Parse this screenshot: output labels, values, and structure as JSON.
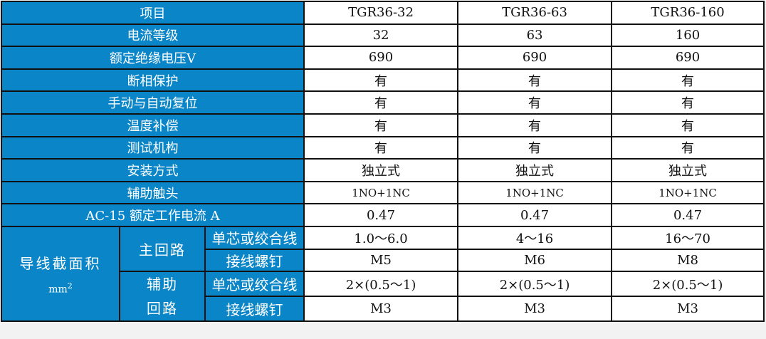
{
  "colors": {
    "header_bg": "#0a85c8",
    "header_text": "#ffffff",
    "border": "#111111"
  },
  "header": {
    "label": "项目",
    "models": [
      "TGR36-32",
      "TGR36-63",
      "TGR36-160"
    ]
  },
  "rows": [
    {
      "label": "电流等级",
      "values": [
        "32",
        "63",
        "160"
      ]
    },
    {
      "label": "额定绝缘电压V",
      "values": [
        "690",
        "690",
        "690"
      ]
    },
    {
      "label": "断相保护",
      "values": [
        "有",
        "有",
        "有"
      ]
    },
    {
      "label": "手动与自动复位",
      "values": [
        "有",
        "有",
        "有"
      ]
    },
    {
      "label": "温度补偿",
      "values": [
        "有",
        "有",
        "有"
      ]
    },
    {
      "label": "测试机构",
      "values": [
        "有",
        "有",
        "有"
      ]
    },
    {
      "label": "安装方式",
      "values": [
        "独立式",
        "独立式",
        "独立式"
      ]
    },
    {
      "label": "辅助触头",
      "values": [
        "1NO+1NC",
        "1NO+1NC",
        "1NO+1NC"
      ]
    },
    {
      "label": "AC-15 额定工作电流 A",
      "values": [
        "0.47",
        "0.47",
        "0.47"
      ]
    }
  ],
  "wire": {
    "label": "导线截面积",
    "unit": "mm",
    "unit_sup": "2",
    "main": {
      "label": "主回路",
      "rows": [
        {
          "label": "单芯或绞合线",
          "values": [
            "1.0～6.0",
            "4～16",
            "16～70"
          ]
        },
        {
          "label": "接线螺钉",
          "values": [
            "M5",
            "M6",
            "M8"
          ]
        }
      ]
    },
    "aux": {
      "label1": "辅助",
      "label2": "回路",
      "rows": [
        {
          "label": "单芯或绞合线",
          "values": [
            "2×(0.5～1)",
            "2×(0.5～1)",
            "2×(0.5～1)"
          ]
        },
        {
          "label": "接线螺钉",
          "values": [
            "M3",
            "M3",
            "M3"
          ]
        }
      ]
    }
  }
}
